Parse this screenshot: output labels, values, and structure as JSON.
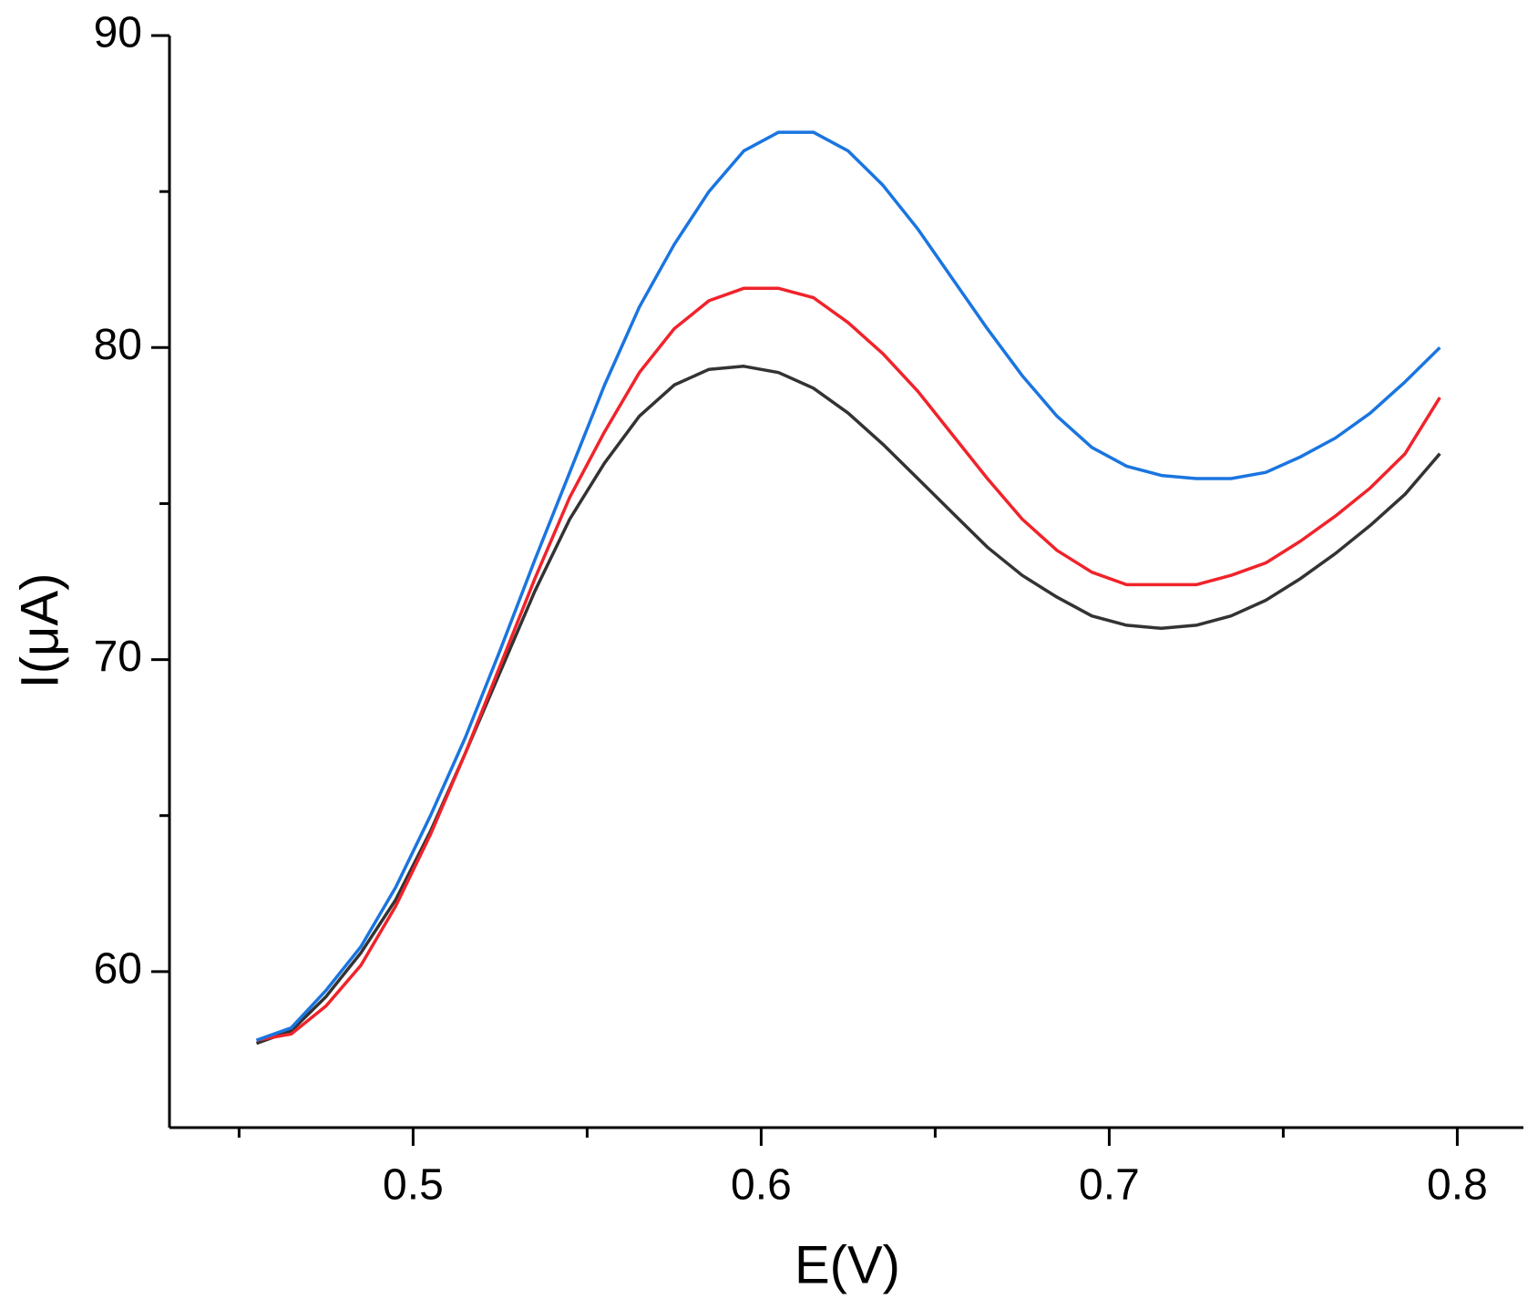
{
  "chart_data": {
    "type": "line",
    "x_label": "E(V)",
    "y_label": "I(μA)",
    "x": [
      0.455,
      0.465,
      0.475,
      0.485,
      0.495,
      0.505,
      0.515,
      0.525,
      0.535,
      0.545,
      0.555,
      0.565,
      0.575,
      0.585,
      0.595,
      0.605,
      0.615,
      0.625,
      0.635,
      0.645,
      0.655,
      0.665,
      0.675,
      0.685,
      0.695,
      0.705,
      0.715,
      0.725,
      0.735,
      0.745,
      0.755,
      0.765,
      0.775,
      0.785,
      0.795
    ],
    "series": [
      {
        "color": "#333333",
        "values": [
          57.7,
          58.1,
          59.2,
          60.6,
          62.3,
          64.5,
          67.0,
          69.6,
          72.2,
          74.5,
          76.3,
          77.8,
          78.8,
          79.3,
          79.4,
          79.2,
          78.7,
          77.9,
          76.9,
          75.8,
          74.7,
          73.6,
          72.7,
          72.0,
          71.4,
          71.1,
          71.0,
          71.1,
          71.4,
          71.9,
          72.6,
          73.4,
          74.3,
          75.3,
          76.6
        ]
      },
      {
        "color": "#f0232b",
        "values": [
          57.8,
          58.0,
          58.9,
          60.2,
          62.1,
          64.4,
          67.0,
          69.8,
          72.6,
          75.2,
          77.3,
          79.2,
          80.6,
          81.5,
          81.9,
          81.9,
          81.6,
          80.8,
          79.8,
          78.6,
          77.2,
          75.8,
          74.5,
          73.5,
          72.8,
          72.4,
          72.4,
          72.4,
          72.7,
          73.1,
          73.8,
          74.6,
          75.5,
          76.6,
          78.4
        ]
      },
      {
        "color": "#1a75e0",
        "values": [
          57.8,
          58.2,
          59.4,
          60.8,
          62.7,
          65.0,
          67.5,
          70.3,
          73.2,
          76.0,
          78.8,
          81.3,
          83.3,
          85.0,
          86.3,
          86.9,
          86.9,
          86.3,
          85.2,
          83.8,
          82.2,
          80.6,
          79.1,
          77.8,
          76.8,
          76.2,
          75.9,
          75.8,
          75.8,
          76.0,
          76.5,
          77.1,
          77.9,
          78.9,
          80.0
        ]
      }
    ],
    "xlim": [
      0.43,
      0.819
    ],
    "ylim": [
      55,
      90
    ],
    "xticks": [
      0.5,
      0.6,
      0.7,
      0.8
    ],
    "yticks": [
      60,
      70,
      80,
      90
    ],
    "xminor_ticks": [
      0.45,
      0.55,
      0.65,
      0.75
    ],
    "yminor_ticks": [
      65,
      75,
      85
    ],
    "grid": false
  }
}
